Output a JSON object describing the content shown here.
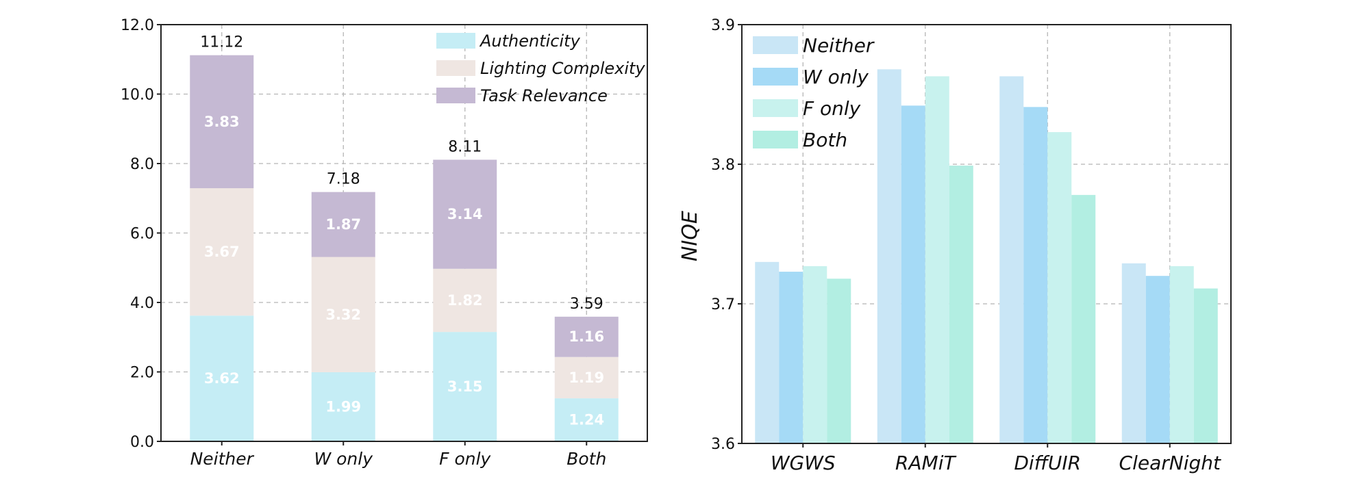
{
  "chart_data": [
    {
      "type": "bar",
      "stacked": true,
      "categories": [
        "Neither",
        "W only",
        "F only",
        "Both"
      ],
      "series": [
        {
          "name": "Authenticity",
          "values": [
            3.62,
            1.99,
            3.15,
            1.24
          ],
          "color": "#c5edf5",
          "value_labels": [
            "3.62",
            "1.99",
            "3.15",
            "1.24"
          ]
        },
        {
          "name": "Lighting Complexity",
          "values": [
            3.67,
            3.32,
            1.82,
            1.19
          ],
          "color": "#efe6e2",
          "value_labels": [
            "3.67",
            "3.32",
            "1.82",
            "1.19"
          ]
        },
        {
          "name": "Task Relevance",
          "values": [
            3.83,
            1.87,
            3.14,
            1.16
          ],
          "color": "#c5b9d3",
          "value_labels": [
            "3.83",
            "1.87",
            "3.14",
            "1.16"
          ]
        }
      ],
      "totals": [
        11.12,
        7.18,
        8.11,
        3.59
      ],
      "total_labels": [
        "11.12",
        "7.18",
        "8.11",
        "3.59"
      ],
      "ylim": [
        0,
        12
      ],
      "yticks": [
        "0.0",
        "2.0",
        "4.0",
        "6.0",
        "8.0",
        "10.0",
        "12.0"
      ],
      "grid": true,
      "legend_position": "top-right",
      "title": "",
      "xlabel": "",
      "ylabel": ""
    },
    {
      "type": "bar",
      "grouped": true,
      "categories": [
        "WGWS",
        "RAMiT",
        "DiffUIR",
        "ClearNight"
      ],
      "series": [
        {
          "name": "Neither",
          "values": [
            3.73,
            3.868,
            3.863,
            3.729
          ],
          "color": "#c9e6f6"
        },
        {
          "name": "W only",
          "values": [
            3.723,
            3.842,
            3.841,
            3.72
          ],
          "color": "#a5daf6"
        },
        {
          "name": "F  only",
          "values": [
            3.727,
            3.863,
            3.823,
            3.727
          ],
          "color": "#c8f2ee"
        },
        {
          "name": "Both",
          "values": [
            3.718,
            3.799,
            3.778,
            3.711
          ],
          "color": "#b2eee2"
        }
      ],
      "ylim": [
        3.6,
        3.9
      ],
      "yticks": [
        "3.6",
        "3.7",
        "3.8",
        "3.9"
      ],
      "ylabel": "NIQE",
      "grid": true,
      "legend_position": "top-left",
      "title": "",
      "xlabel": ""
    }
  ]
}
